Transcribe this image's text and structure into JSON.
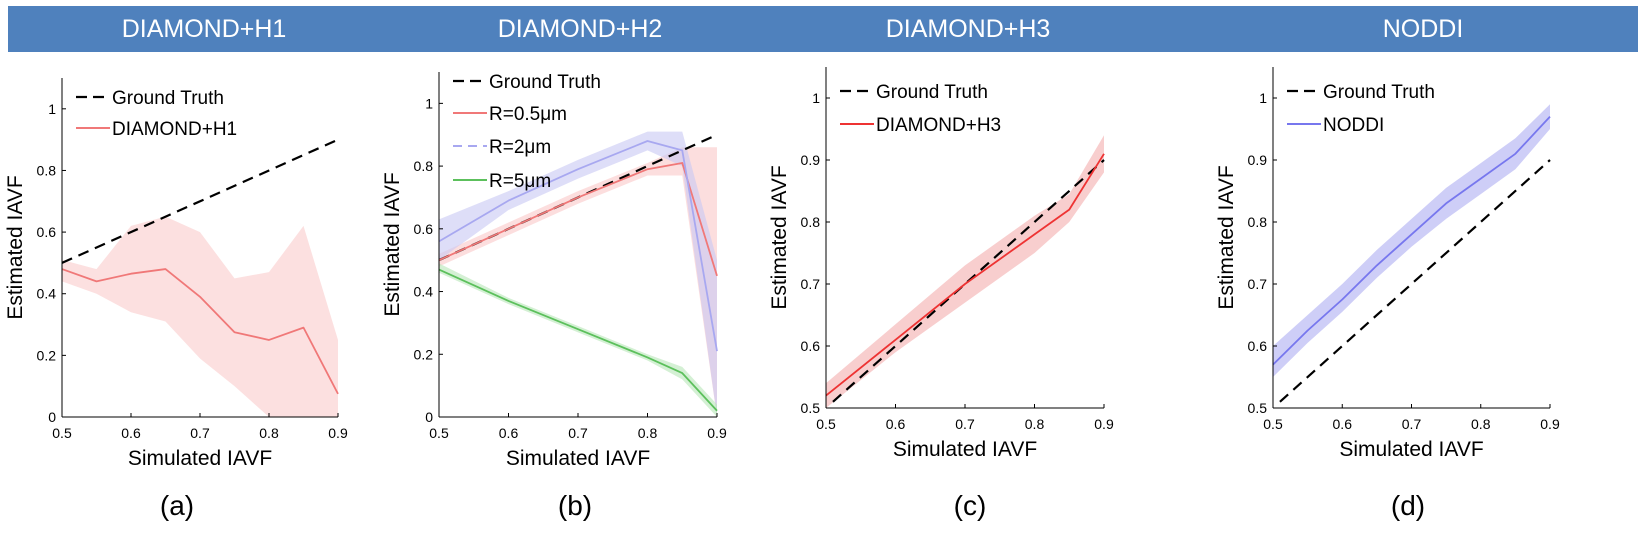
{
  "header": {
    "titles": [
      "DIAMOND+H1",
      "DIAMOND+H2",
      "DIAMOND+H3",
      "NODDI"
    ],
    "color": "#4f81bd"
  },
  "subfigure_labels": [
    "(a)",
    "(b)",
    "(c)",
    "(d)"
  ],
  "chart_data": [
    {
      "type": "line",
      "title": "DIAMOND+H1",
      "xlabel": "Simulated IAVF",
      "ylabel": "Estimated IAVF",
      "xlim": [
        0.5,
        0.9
      ],
      "ylim": [
        0,
        1.1
      ],
      "xticks": [
        0.5,
        0.6,
        0.7,
        0.8,
        0.9
      ],
      "xtick_labels": [
        "0.5",
        "0.6",
        "0.7",
        "0.8",
        "0.9"
      ],
      "yticks": [
        0,
        0.2,
        0.4,
        0.6,
        0.8,
        1
      ],
      "ytick_labels": [
        "0",
        "0.2",
        "0.4",
        "0.6",
        "0.8",
        "1"
      ],
      "legend_position": "top-left",
      "series": [
        {
          "name": "Ground Truth",
          "color": "#000000",
          "dashed": true,
          "x": [
            0.5,
            0.9
          ],
          "values": [
            0.5,
            0.9
          ]
        },
        {
          "name": "DIAMOND+H1",
          "color": "#f07878",
          "band": "#fbd5d5",
          "band_opacity": 0.75,
          "x": [
            0.5,
            0.55,
            0.6,
            0.65,
            0.7,
            0.75,
            0.8,
            0.85,
            0.9
          ],
          "values": [
            0.48,
            0.44,
            0.465,
            0.48,
            0.39,
            0.275,
            0.25,
            0.29,
            0.075
          ],
          "lower": [
            0.44,
            0.4,
            0.34,
            0.31,
            0.19,
            0.1,
            0.0,
            0.0,
            0.0
          ],
          "upper": [
            0.51,
            0.48,
            0.62,
            0.65,
            0.6,
            0.45,
            0.47,
            0.62,
            0.25
          ]
        }
      ]
    },
    {
      "type": "line",
      "title": "DIAMOND+H2",
      "xlabel": "Simulated IAVF",
      "ylabel": "Estimated IAVF",
      "xlim": [
        0.5,
        0.9
      ],
      "ylim": [
        0,
        1.1
      ],
      "xticks": [
        0.5,
        0.6,
        0.7,
        0.8,
        0.9
      ],
      "xtick_labels": [
        "0.5",
        "0.6",
        "0.7",
        "0.8",
        "0.9"
      ],
      "yticks": [
        0,
        0.2,
        0.4,
        0.6,
        0.8,
        1
      ],
      "ytick_labels": [
        "0",
        "0.2",
        "0.4",
        "0.6",
        "0.8",
        "1"
      ],
      "legend_position": "top-left",
      "series": [
        {
          "name": "Ground Truth",
          "color": "#000000",
          "dashed": true,
          "x": [
            0.5,
            0.9
          ],
          "values": [
            0.5,
            0.9
          ]
        },
        {
          "name": "R=0.5μm",
          "color": "#f07878",
          "band": "#fbd0d0",
          "band_opacity": 0.7,
          "x": [
            0.5,
            0.6,
            0.7,
            0.8,
            0.85,
            0.9
          ],
          "values": [
            0.5,
            0.6,
            0.7,
            0.79,
            0.81,
            0.45
          ],
          "lower": [
            0.48,
            0.58,
            0.68,
            0.77,
            0.77,
            0.0
          ],
          "upper": [
            0.52,
            0.62,
            0.72,
            0.81,
            0.86,
            0.86
          ]
        },
        {
          "name": "R=2μm",
          "color": "#a8a8f0",
          "dashed": true,
          "band": "#c8c8f4",
          "band_opacity": 0.6,
          "x": [
            0.5,
            0.6,
            0.7,
            0.8,
            0.85,
            0.9
          ],
          "values": [
            0.56,
            0.69,
            0.79,
            0.88,
            0.85,
            0.21
          ],
          "lower": [
            0.5,
            0.66,
            0.76,
            0.85,
            0.8,
            0.0
          ],
          "upper": [
            0.63,
            0.72,
            0.82,
            0.91,
            0.91,
            0.5
          ]
        },
        {
          "name": "R=5μm",
          "color": "#5cc05c",
          "band": "#b8e6b8",
          "band_opacity": 0.6,
          "x": [
            0.5,
            0.6,
            0.7,
            0.8,
            0.85,
            0.9
          ],
          "values": [
            0.47,
            0.37,
            0.28,
            0.19,
            0.14,
            0.02
          ],
          "lower": [
            0.46,
            0.36,
            0.27,
            0.18,
            0.12,
            0.0
          ],
          "upper": [
            0.49,
            0.38,
            0.29,
            0.2,
            0.16,
            0.04
          ]
        }
      ]
    },
    {
      "type": "line",
      "title": "DIAMOND+H3",
      "xlabel": "Simulated IAVF",
      "ylabel": "Estimated IAVF",
      "xlim": [
        0.5,
        0.9
      ],
      "ylim": [
        0.5,
        1.05
      ],
      "xticks": [
        0.5,
        0.6,
        0.7,
        0.8,
        0.9
      ],
      "xtick_labels": [
        "0.5",
        "0.6",
        "0.7",
        "0.8",
        "0.9"
      ],
      "yticks": [
        0.5,
        0.6,
        0.7,
        0.8,
        0.9,
        1
      ],
      "ytick_labels": [
        "0.5",
        "0.6",
        "0.7",
        "0.8",
        "0.9",
        "1"
      ],
      "legend_position": "top-left",
      "series": [
        {
          "name": "Ground Truth",
          "color": "#000000",
          "dashed": true,
          "x": [
            0.51,
            0.9
          ],
          "values": [
            0.51,
            0.9
          ]
        },
        {
          "name": "DIAMOND+H3",
          "color": "#ee3333",
          "band": "#f6c2c2",
          "band_opacity": 0.8,
          "x": [
            0.5,
            0.6,
            0.7,
            0.8,
            0.85,
            0.9
          ],
          "values": [
            0.52,
            0.61,
            0.7,
            0.78,
            0.82,
            0.91
          ],
          "lower": [
            0.5,
            0.59,
            0.67,
            0.75,
            0.8,
            0.88
          ],
          "upper": [
            0.54,
            0.635,
            0.73,
            0.81,
            0.845,
            0.94
          ]
        }
      ]
    },
    {
      "type": "line",
      "title": "NODDI",
      "xlabel": "Simulated IAVF",
      "ylabel": "Estimated IAVF",
      "xlim": [
        0.5,
        0.9
      ],
      "ylim": [
        0.5,
        1.05
      ],
      "xticks": [
        0.5,
        0.6,
        0.7,
        0.8,
        0.9
      ],
      "xtick_labels": [
        "0.5",
        "0.6",
        "0.7",
        "0.8",
        "0.9"
      ],
      "yticks": [
        0.5,
        0.6,
        0.7,
        0.8,
        0.9,
        1
      ],
      "ytick_labels": [
        "0.5",
        "0.6",
        "0.7",
        "0.8",
        "0.9",
        "1"
      ],
      "legend_position": "top-left",
      "series": [
        {
          "name": "Ground Truth",
          "color": "#000000",
          "dashed": true,
          "x": [
            0.51,
            0.9
          ],
          "values": [
            0.51,
            0.9
          ]
        },
        {
          "name": "NODDI",
          "color": "#7777ee",
          "band": "#c6c6f6",
          "band_opacity": 0.85,
          "x": [
            0.5,
            0.55,
            0.6,
            0.65,
            0.7,
            0.75,
            0.8,
            0.85,
            0.9
          ],
          "values": [
            0.57,
            0.625,
            0.675,
            0.73,
            0.78,
            0.83,
            0.87,
            0.91,
            0.97
          ],
          "lower": [
            0.55,
            0.605,
            0.655,
            0.71,
            0.76,
            0.805,
            0.845,
            0.885,
            0.95
          ],
          "upper": [
            0.6,
            0.65,
            0.7,
            0.755,
            0.805,
            0.855,
            0.895,
            0.935,
            0.99
          ]
        }
      ]
    }
  ]
}
